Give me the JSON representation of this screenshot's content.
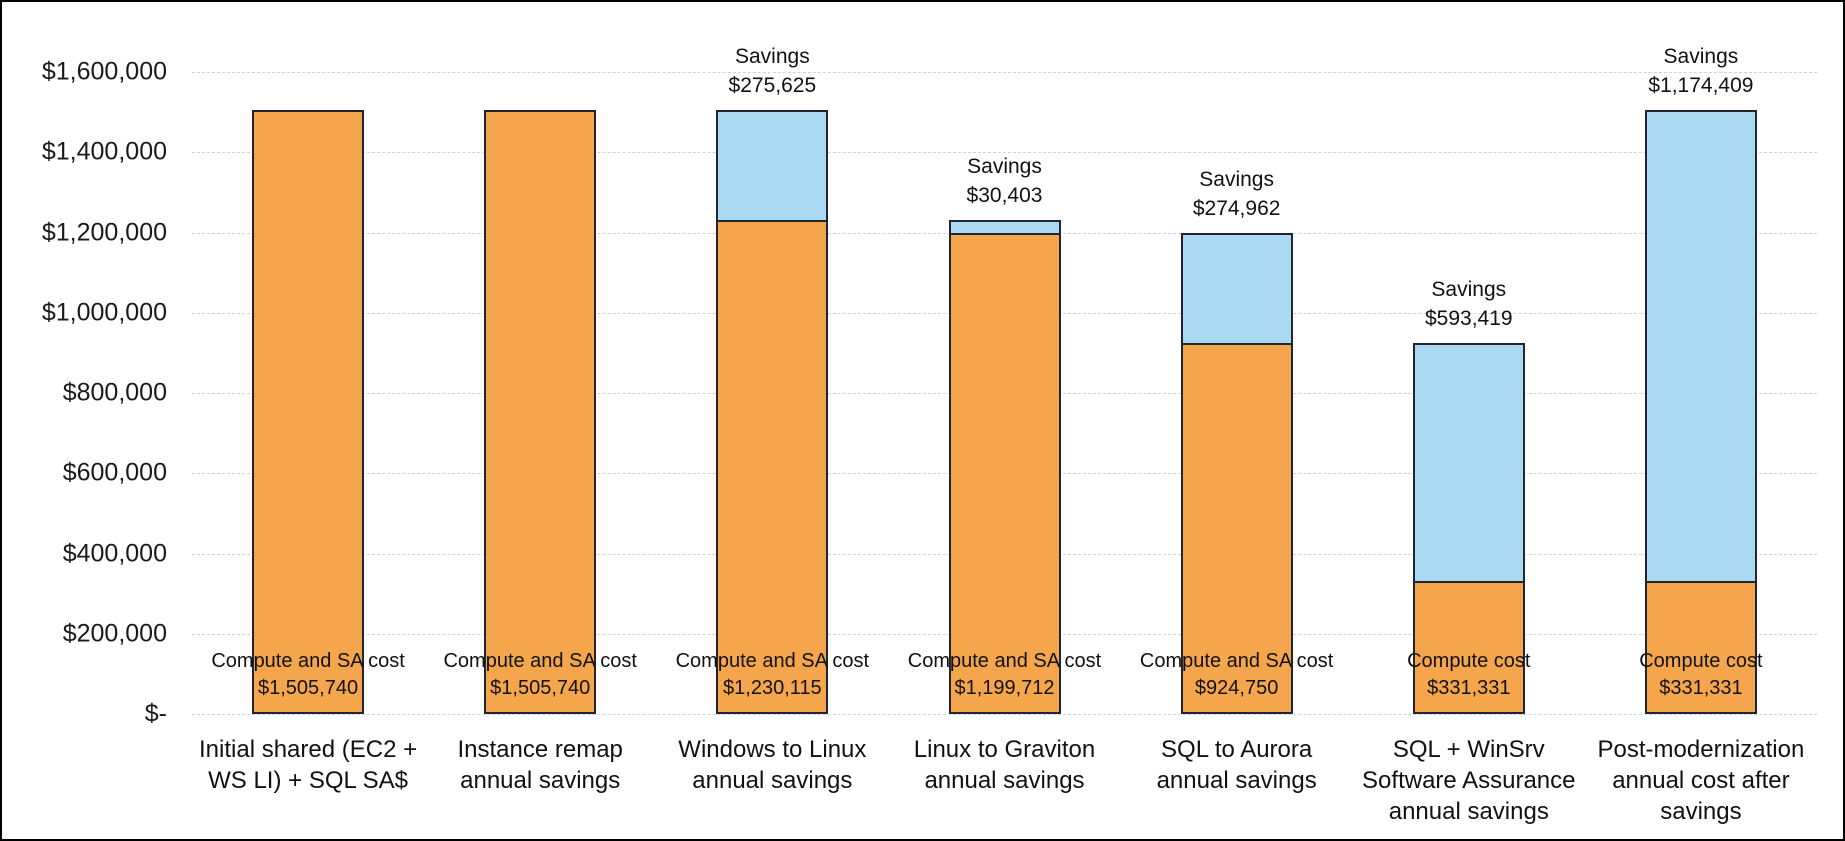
{
  "chart_data": {
    "type": "bar",
    "stacked": true,
    "title": "",
    "legend": "none",
    "grid": "horizontal-dashed",
    "ylim": [
      0,
      1600000
    ],
    "ytick_step": 200000,
    "yticks": [
      {
        "value": 0,
        "label": "$-"
      },
      {
        "value": 200000,
        "label": "$200,000"
      },
      {
        "value": 400000,
        "label": "$400,000"
      },
      {
        "value": 600000,
        "label": "$600,000"
      },
      {
        "value": 800000,
        "label": "$800,000"
      },
      {
        "value": 1000000,
        "label": "$1,000,000"
      },
      {
        "value": 1200000,
        "label": "$1,200,000"
      },
      {
        "value": 1400000,
        "label": "$1,400,000"
      },
      {
        "value": 1600000,
        "label": "$1,600,000"
      }
    ],
    "categories": [
      [
        "Initial shared (EC2 +",
        "WS LI) + SQL SA$"
      ],
      [
        "Instance remap",
        "annual savings"
      ],
      [
        "Windows to Linux",
        "annual savings"
      ],
      [
        "Linux to Graviton",
        "annual savings"
      ],
      [
        "SQL to Aurora",
        "annual savings"
      ],
      [
        "SQL + WinSrv",
        "Software Assurance",
        "annual savings"
      ],
      [
        "Post-modernization",
        "annual cost after",
        "savings"
      ]
    ],
    "series": [
      {
        "name": "Compute cost",
        "color": "#F5A54B",
        "values": [
          1505740,
          1505740,
          1230115,
          1199712,
          924750,
          331331,
          331331
        ]
      },
      {
        "name": "Savings",
        "color": "#ABD9F1",
        "values": [
          0,
          0,
          275625,
          30403,
          274962,
          593419,
          1174409
        ]
      }
    ],
    "bar_labels": [
      {
        "cost_title": "Compute and SA cost",
        "cost_value": "$1,505,740",
        "savings_title": "",
        "savings_value": ""
      },
      {
        "cost_title": "Compute and SA cost",
        "cost_value": "$1,505,740",
        "savings_title": "",
        "savings_value": ""
      },
      {
        "cost_title": "Compute and SA cost",
        "cost_value": "$1,230,115",
        "savings_title": "Savings",
        "savings_value": "$275,625"
      },
      {
        "cost_title": "Compute and SA cost",
        "cost_value": "$1,199,712",
        "savings_title": "Savings",
        "savings_value": "$30,403"
      },
      {
        "cost_title": "Compute and SA cost",
        "cost_value": "$924,750",
        "savings_title": "Savings",
        "savings_value": "$274,962"
      },
      {
        "cost_title": "Compute cost",
        "cost_value": "$331,331",
        "savings_title": "Savings",
        "savings_value": "$593,419"
      },
      {
        "cost_title": "Compute cost",
        "cost_value": "$331,331",
        "savings_title": "Savings",
        "savings_value": "$1,174,409"
      }
    ],
    "colors": {
      "cost_fill": "#F5A54B",
      "savings_fill": "#ABD9F1",
      "bar_border": "#1F2533",
      "gridline": "#C9D2EB",
      "text": "#1A1A1A",
      "frame_border": "#000000"
    }
  }
}
